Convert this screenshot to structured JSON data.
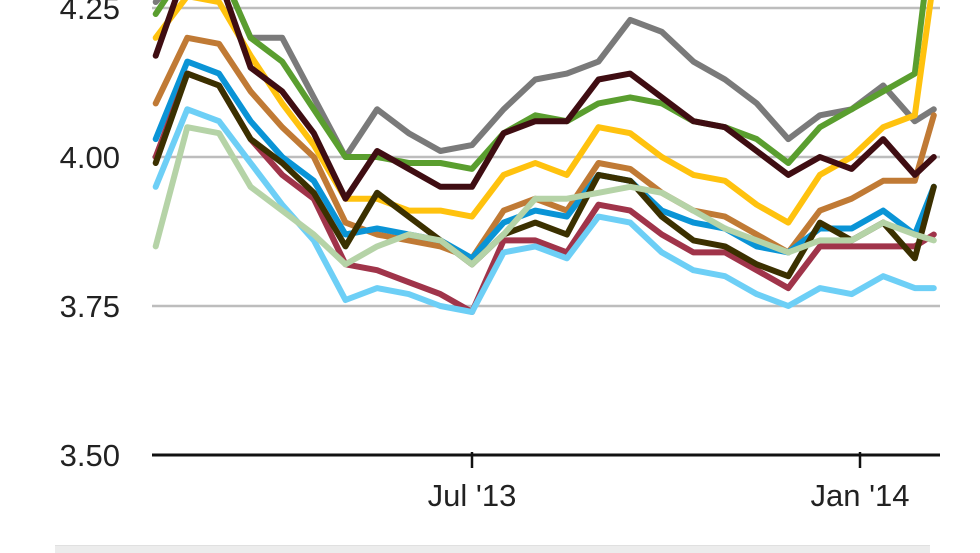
{
  "chart_data": {
    "type": "line",
    "title": "",
    "xlabel": "",
    "ylabel": "",
    "ylim": [
      3.5,
      4.25
    ],
    "yticks": [
      "4.25",
      "4.00",
      "3.75",
      "3.50"
    ],
    "ytick_values": [
      4.25,
      4.0,
      3.75,
      3.5
    ],
    "xticks": [
      {
        "date": "2013-07-01",
        "label": "Jul '13"
      },
      {
        "date": "2014-01-01",
        "label": "Jan '14"
      }
    ],
    "grid": "horizontal",
    "x": [
      "2013-02-01",
      "2013-02-16",
      "2013-03-03",
      "2013-03-18",
      "2013-04-02",
      "2013-04-17",
      "2013-05-02",
      "2013-05-17",
      "2013-06-01",
      "2013-06-16",
      "2013-07-01",
      "2013-07-16",
      "2013-07-31",
      "2013-08-15",
      "2013-08-30",
      "2013-09-14",
      "2013-09-29",
      "2013-10-14",
      "2013-10-29",
      "2013-11-13",
      "2013-11-28",
      "2013-12-13",
      "2013-12-28",
      "2014-01-12",
      "2014-01-27",
      "2014-02-05"
    ],
    "series": [
      {
        "color": "#7a7a7a",
        "values": [
          4.26,
          4.32,
          4.32,
          4.2,
          4.2,
          4.1,
          4.0,
          4.08,
          4.04,
          4.01,
          4.02,
          4.08,
          4.13,
          4.14,
          4.16,
          4.23,
          4.21,
          4.16,
          4.13,
          4.09,
          4.03,
          4.07,
          4.08,
          4.12,
          4.06,
          4.08
        ]
      },
      {
        "color": "#5a9e2f",
        "values": [
          4.24,
          4.32,
          4.32,
          4.2,
          4.16,
          4.08,
          4.0,
          4.0,
          3.99,
          3.99,
          3.98,
          4.04,
          4.07,
          4.06,
          4.09,
          4.1,
          4.09,
          4.06,
          4.05,
          4.03,
          3.99,
          4.05,
          4.08,
          4.11,
          4.14,
          4.4
        ]
      },
      {
        "color": "#ffc20e",
        "values": [
          4.2,
          4.27,
          4.26,
          4.17,
          4.09,
          4.02,
          3.93,
          3.93,
          3.91,
          3.91,
          3.9,
          3.97,
          3.99,
          3.97,
          4.05,
          4.04,
          4.0,
          3.97,
          3.96,
          3.92,
          3.89,
          3.97,
          4.0,
          4.05,
          4.07,
          4.3
        ]
      },
      {
        "color": "#c07a35",
        "values": [
          4.09,
          4.2,
          4.19,
          4.11,
          4.05,
          4.0,
          3.89,
          3.87,
          3.86,
          3.85,
          3.83,
          3.91,
          3.93,
          3.91,
          3.99,
          3.98,
          3.94,
          3.91,
          3.9,
          3.87,
          3.84,
          3.91,
          3.93,
          3.96,
          3.96,
          4.07
        ]
      },
      {
        "color": "#0a94d6",
        "values": [
          4.03,
          4.16,
          4.14,
          4.06,
          4.0,
          3.96,
          3.87,
          3.88,
          3.87,
          3.86,
          3.83,
          3.89,
          3.91,
          3.9,
          3.97,
          3.96,
          3.91,
          3.89,
          3.88,
          3.85,
          3.84,
          3.88,
          3.88,
          3.91,
          3.87,
          3.95
        ]
      },
      {
        "color": "#a0344a",
        "values": [
          4.0,
          4.14,
          4.12,
          4.03,
          3.97,
          3.93,
          3.82,
          3.81,
          3.79,
          3.77,
          3.74,
          3.86,
          3.86,
          3.84,
          3.92,
          3.91,
          3.87,
          3.84,
          3.84,
          3.81,
          3.78,
          3.85,
          3.85,
          3.85,
          3.85,
          3.87
        ]
      },
      {
        "color": "#6dcff6",
        "values": [
          3.95,
          4.08,
          4.06,
          3.99,
          3.92,
          3.86,
          3.76,
          3.78,
          3.77,
          3.75,
          3.74,
          3.84,
          3.85,
          3.83,
          3.9,
          3.89,
          3.84,
          3.81,
          3.8,
          3.77,
          3.75,
          3.78,
          3.77,
          3.8,
          3.78,
          3.78
        ]
      },
      {
        "color": "#3b3000",
        "values": [
          3.99,
          4.14,
          4.12,
          4.03,
          3.99,
          3.94,
          3.85,
          3.94,
          3.9,
          3.86,
          3.82,
          3.87,
          3.89,
          3.87,
          3.97,
          3.96,
          3.9,
          3.86,
          3.85,
          3.82,
          3.8,
          3.89,
          3.86,
          3.89,
          3.83,
          3.95
        ]
      },
      {
        "color": "#b5d3a7",
        "values": [
          3.85,
          4.05,
          4.04,
          3.95,
          3.91,
          3.87,
          3.82,
          3.85,
          3.87,
          3.86,
          3.82,
          3.87,
          3.93,
          3.93,
          3.94,
          3.95,
          3.94,
          3.91,
          3.88,
          3.86,
          3.84,
          3.86,
          3.86,
          3.89,
          3.87,
          3.86
        ]
      },
      {
        "color": "#3f0d12",
        "values": [
          4.17,
          4.32,
          4.3,
          4.15,
          4.11,
          4.04,
          3.93,
          4.01,
          3.98,
          3.95,
          3.95,
          4.04,
          4.06,
          4.06,
          4.13,
          4.14,
          4.1,
          4.06,
          4.05,
          4.01,
          3.97,
          4.0,
          3.98,
          4.03,
          3.97,
          4.0
        ]
      }
    ]
  }
}
